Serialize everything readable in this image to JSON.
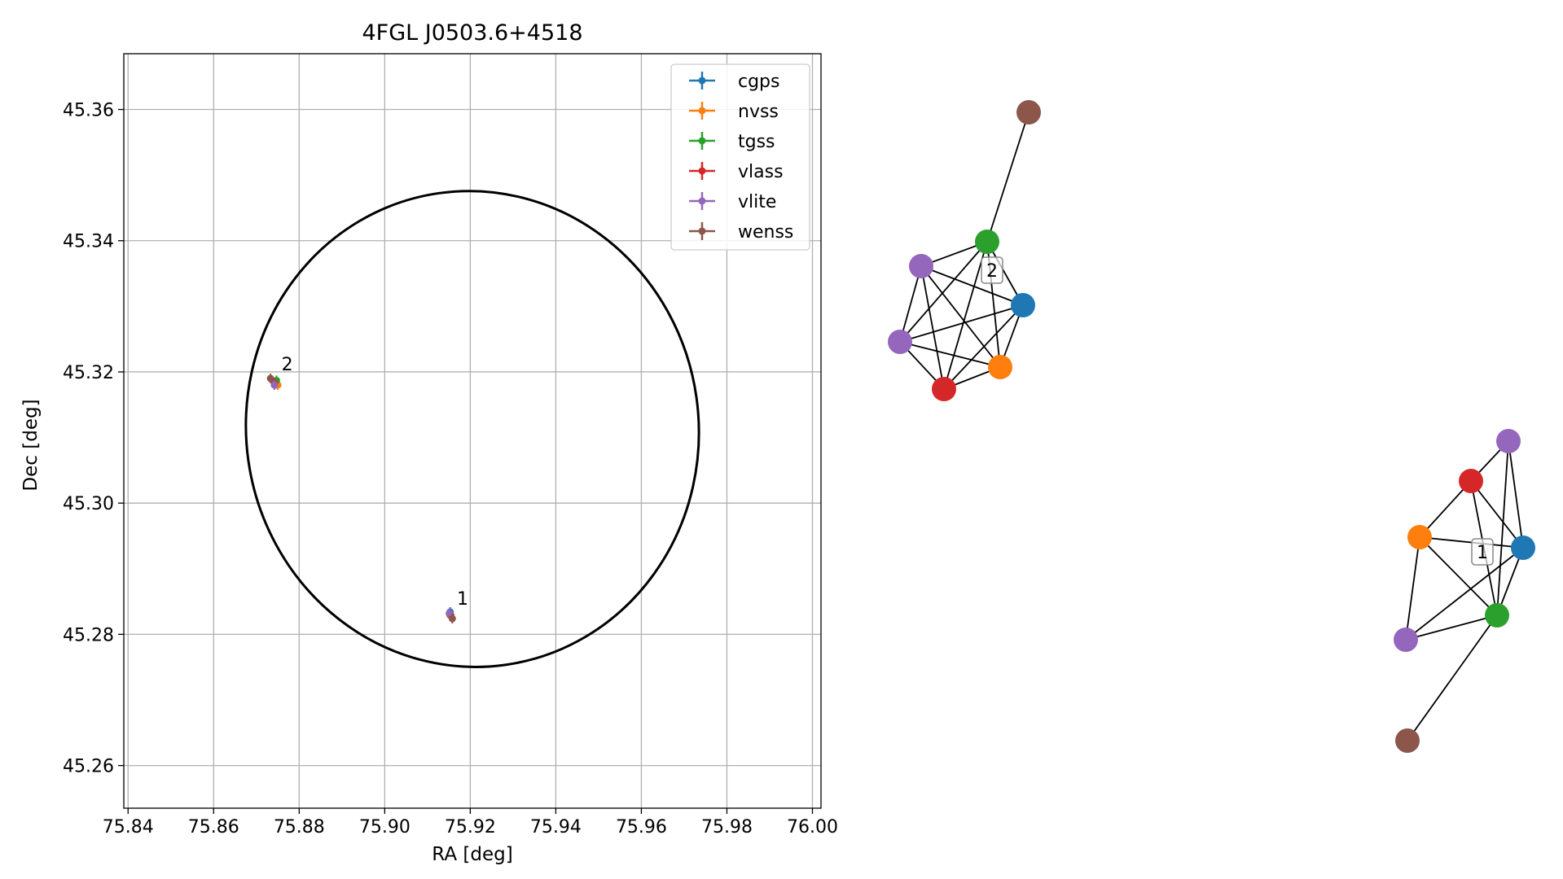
{
  "chart_data": [
    {
      "type": "scatter",
      "title": "4FGL J0503.6+4518",
      "xlabel": "RA [deg]",
      "ylabel": "Dec [deg]",
      "xlim": [
        75.839,
        76.002
      ],
      "ylim": [
        45.2535,
        45.3685
      ],
      "xticks": [
        75.84,
        75.86,
        75.88,
        75.9,
        75.92,
        75.94,
        75.96,
        75.98,
        76.0
      ],
      "xtick_labels": [
        "75.84",
        "75.86",
        "75.88",
        "75.90",
        "75.92",
        "75.94",
        "75.96",
        "75.98",
        "76.00"
      ],
      "yticks": [
        45.26,
        45.28,
        45.3,
        45.32,
        45.34,
        45.36
      ],
      "ytick_labels": [
        "45.26",
        "45.28",
        "45.30",
        "45.32",
        "45.34",
        "45.36"
      ],
      "grid": true,
      "legend_position": "top-right",
      "ellipse": {
        "center_ra": 75.9205,
        "center_dec": 45.3113,
        "radius_ra": 0.0529,
        "radius_dec": 0.0363,
        "angle_deg": -8
      },
      "series": [
        {
          "name": "cgps",
          "color": "#1f77b4",
          "points": [
            [
              75.9153,
              45.2834
            ],
            [
              75.8745,
              45.3182
            ]
          ]
        },
        {
          "name": "nvss",
          "color": "#ff7f0e",
          "points": [
            [
              75.9155,
              45.2828
            ],
            [
              75.875,
              45.318
            ]
          ]
        },
        {
          "name": "tgss",
          "color": "#2ca02c",
          "points": [
            [
              75.9152,
              45.283
            ],
            [
              75.8747,
              45.3187
            ]
          ]
        },
        {
          "name": "vlass",
          "color": "#d62728",
          "points": [
            [
              75.9154,
              45.2829
            ],
            [
              75.8742,
              45.3183
            ]
          ]
        },
        {
          "name": "vlite",
          "color": "#9467bd",
          "points": [
            [
              75.9151,
              45.2832
            ],
            [
              75.8742,
              45.318
            ]
          ]
        },
        {
          "name": "wenss",
          "color": "#8c564b",
          "points": [
            [
              75.9158,
              45.2824
            ],
            [
              75.8733,
              45.319
            ]
          ]
        }
      ],
      "annotations": [
        {
          "text": "1",
          "ra": 75.9165,
          "dec": 45.2838
        },
        {
          "text": "2",
          "ra": 75.8755,
          "dec": 45.3195
        }
      ]
    },
    {
      "type": "network",
      "groups": [
        {
          "label": "2",
          "nodes": [
            {
              "id": "wenss",
              "color": "#8c564b"
            },
            {
              "id": "tgss",
              "color": "#2ca02c"
            },
            {
              "id": "vlite_a",
              "color": "#9467bd"
            },
            {
              "id": "cgps",
              "color": "#1f77b4"
            },
            {
              "id": "vlite_b",
              "color": "#9467bd"
            },
            {
              "id": "nvss",
              "color": "#ff7f0e"
            },
            {
              "id": "vlass",
              "color": "#d62728"
            }
          ],
          "edges": [
            [
              "wenss",
              "tgss"
            ],
            [
              "tgss",
              "vlite_a"
            ],
            [
              "tgss",
              "cgps"
            ],
            [
              "tgss",
              "vlite_b"
            ],
            [
              "tgss",
              "nvss"
            ],
            [
              "tgss",
              "vlass"
            ],
            [
              "vlite_a",
              "cgps"
            ],
            [
              "vlite_a",
              "vlite_b"
            ],
            [
              "vlite_a",
              "nvss"
            ],
            [
              "vlite_a",
              "vlass"
            ],
            [
              "cgps",
              "vlite_b"
            ],
            [
              "cgps",
              "nvss"
            ],
            [
              "cgps",
              "vlass"
            ],
            [
              "vlite_b",
              "nvss"
            ],
            [
              "vlite_b",
              "vlass"
            ],
            [
              "nvss",
              "vlass"
            ]
          ]
        },
        {
          "label": "1",
          "nodes": [
            {
              "id": "vlite_a",
              "color": "#9467bd"
            },
            {
              "id": "vlass",
              "color": "#d62728"
            },
            {
              "id": "nvss",
              "color": "#ff7f0e"
            },
            {
              "id": "cgps",
              "color": "#1f77b4"
            },
            {
              "id": "tgss",
              "color": "#2ca02c"
            },
            {
              "id": "vlite_b",
              "color": "#9467bd"
            },
            {
              "id": "wenss",
              "color": "#8c564b"
            }
          ],
          "edges": [
            [
              "vlite_a",
              "vlass"
            ],
            [
              "vlite_a",
              "cgps"
            ],
            [
              "vlite_a",
              "tgss"
            ],
            [
              "vlass",
              "nvss"
            ],
            [
              "vlass",
              "cgps"
            ],
            [
              "vlass",
              "tgss"
            ],
            [
              "nvss",
              "cgps"
            ],
            [
              "nvss",
              "tgss"
            ],
            [
              "nvss",
              "vlite_b"
            ],
            [
              "cgps",
              "tgss"
            ],
            [
              "cgps",
              "vlite_b"
            ],
            [
              "tgss",
              "vlite_b"
            ],
            [
              "tgss",
              "wenss"
            ]
          ]
        }
      ]
    }
  ]
}
